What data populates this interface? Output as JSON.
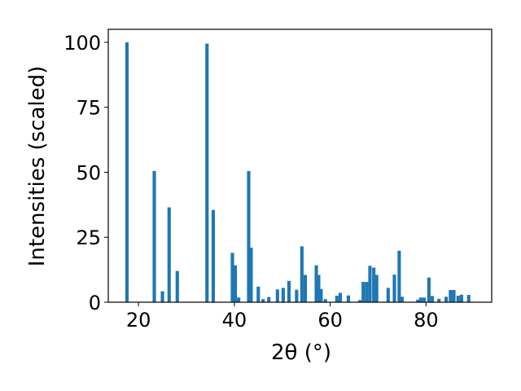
{
  "chart_data": {
    "type": "bar",
    "xlabel": "2θ (°)",
    "ylabel": "Intensities (scaled)",
    "xlim": [
      13.7,
      93.7
    ],
    "ylim": [
      0,
      105
    ],
    "xticks": [
      20,
      40,
      60,
      80
    ],
    "yticks": [
      0,
      25,
      50,
      75,
      100
    ],
    "bar_color": "#1f77b4",
    "bar_width": 0.7,
    "grid": false,
    "x": [
      17.6,
      23.3,
      25.0,
      26.4,
      28.1,
      34.3,
      35.6,
      39.6,
      40.2,
      40.9,
      43.0,
      43.5,
      45.0,
      46.0,
      47.2,
      49.0,
      50.2,
      51.4,
      53.0,
      54.1,
      54.8,
      57.1,
      57.6,
      58.1,
      59.0,
      61.4,
      62.1,
      63.8,
      66.2,
      66.9,
      67.6,
      68.3,
      69.1,
      69.7,
      72.1,
      73.4,
      74.4,
      75.0,
      78.3,
      78.9,
      79.6,
      80.6,
      81.3,
      82.7,
      84.2,
      85.1,
      85.8,
      86.7,
      87.4,
      88.9
    ],
    "values": [
      100,
      50.5,
      4.2,
      36.5,
      12,
      99.5,
      35.5,
      19,
      14.2,
      1.8,
      50.5,
      21,
      6,
      1.2,
      2,
      4.9,
      5.5,
      8.2,
      4.8,
      21.5,
      10.5,
      14.2,
      10.5,
      5.1,
      1.2,
      2.5,
      3.6,
      2.6,
      0.8,
      7.8,
      7.8,
      14,
      13.3,
      10.5,
      5.5,
      10.6,
      19.8,
      2.1,
      1,
      1.8,
      1.8,
      9.5,
      2.4,
      1.3,
      2.1,
      4.7,
      4.7,
      2.5,
      2.9,
      2.8
    ]
  }
}
